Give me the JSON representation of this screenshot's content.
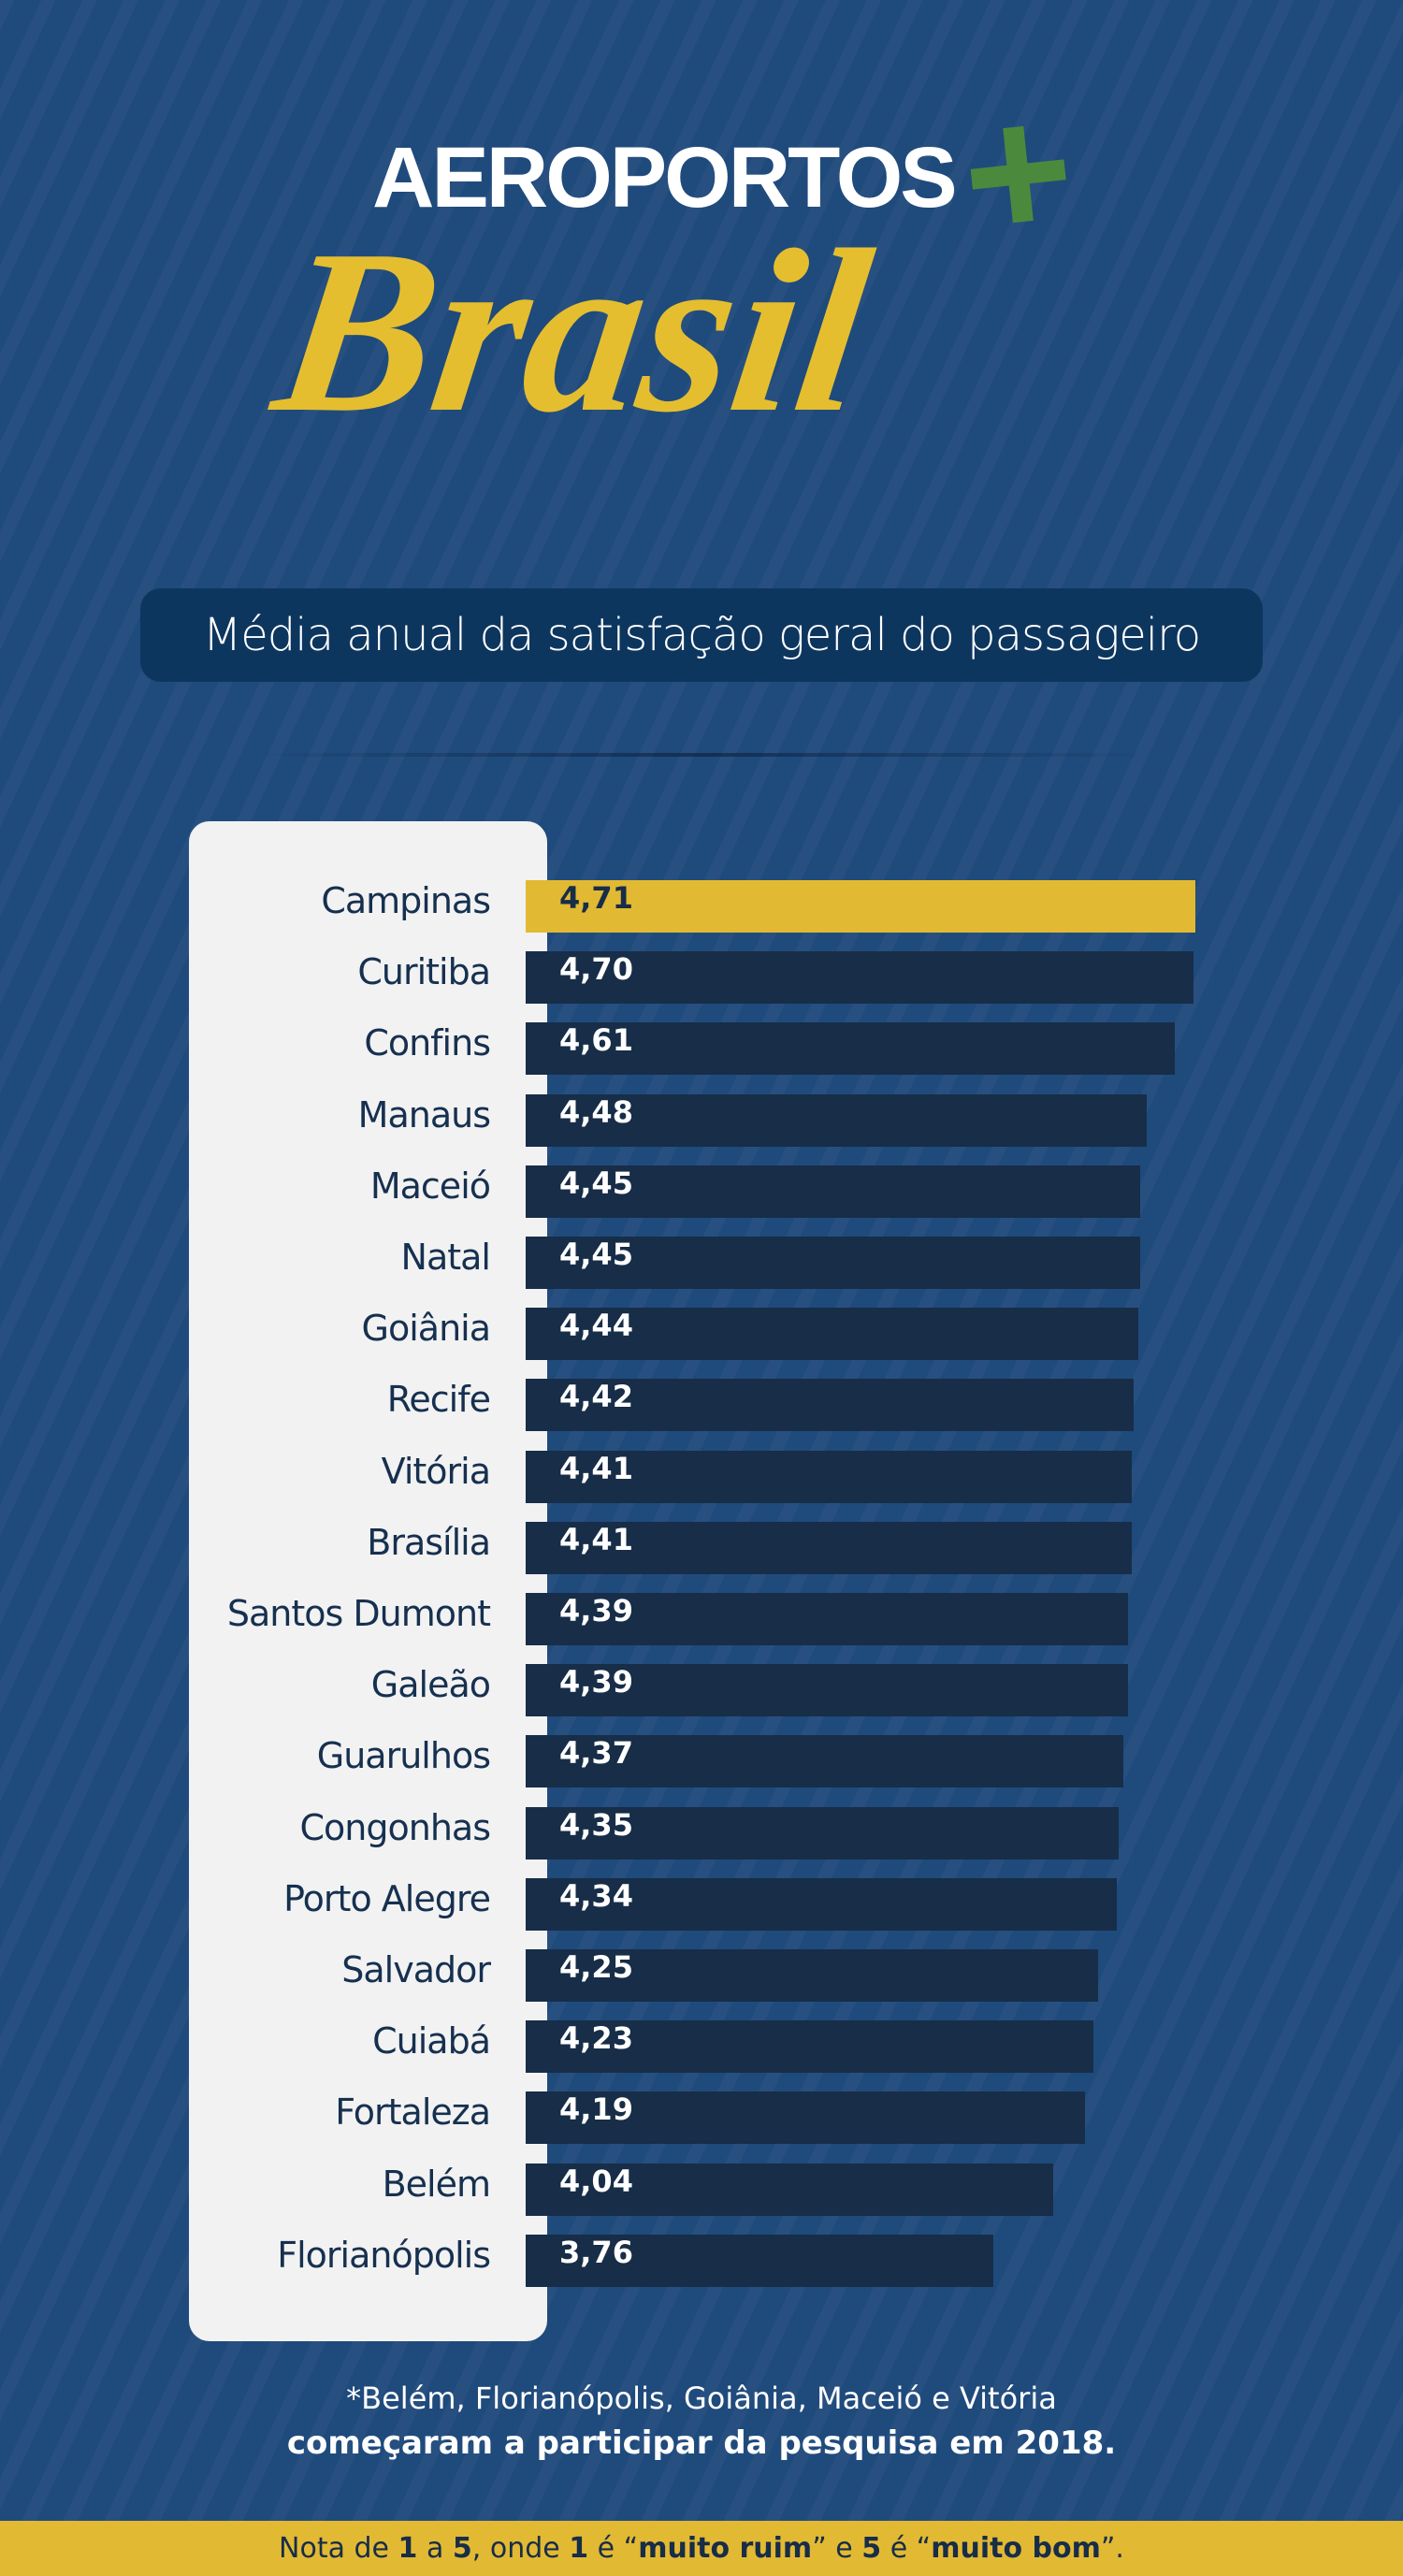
{
  "logo": {
    "line1": "AEROPORTOS",
    "plus": "+",
    "line2": "Brasil"
  },
  "subtitle": "Média anual da satisfação geral do passageiro",
  "colors": {
    "background": "#1f4a7c",
    "bar": "#172d48",
    "highlight": "#e2b933",
    "plus_green": "#4b8a3c"
  },
  "chart_data": {
    "type": "bar",
    "orientation": "horizontal",
    "title": "Média anual da satisfação geral do passageiro",
    "categories": [
      "Campinas",
      "Curitiba",
      "Confins",
      "Manaus",
      "Maceió",
      "Natal",
      "Goiânia",
      "Recife",
      "Vitória",
      "Brasília",
      "Santos Dumont",
      "Galeão",
      "Guarulhos",
      "Congonhas",
      "Porto Alegre",
      "Salvador",
      "Cuiabá",
      "Fortaleza",
      "Belém",
      "Florianópolis"
    ],
    "values": [
      4.71,
      4.7,
      4.61,
      4.48,
      4.45,
      4.45,
      4.44,
      4.42,
      4.41,
      4.41,
      4.39,
      4.39,
      4.37,
      4.35,
      4.34,
      4.25,
      4.23,
      4.19,
      4.04,
      3.76
    ],
    "value_labels": [
      "4,71",
      "4,70",
      "4,61",
      "4,48",
      "4,45",
      "4,45",
      "4,44",
      "4,42",
      "4,41",
      "4,41",
      "4,39",
      "4,39",
      "4,37",
      "4,35",
      "4,34",
      "4,25",
      "4,23",
      "4,19",
      "4,04",
      "3,76"
    ],
    "highlighted": "Campinas",
    "grid": false,
    "legend": "none"
  },
  "footnote": {
    "line1": "*Belém, Florianópolis, Goiânia, Maceió e Vitória",
    "line2": "começaram a participar da pesquisa em 2018."
  },
  "scale_note": {
    "parts": [
      "Nota de ",
      "1",
      " a ",
      "5",
      ", onde ",
      "1",
      " é “",
      "muito ruim",
      "” e ",
      "5",
      " é “",
      "muito bom",
      "”."
    ]
  }
}
